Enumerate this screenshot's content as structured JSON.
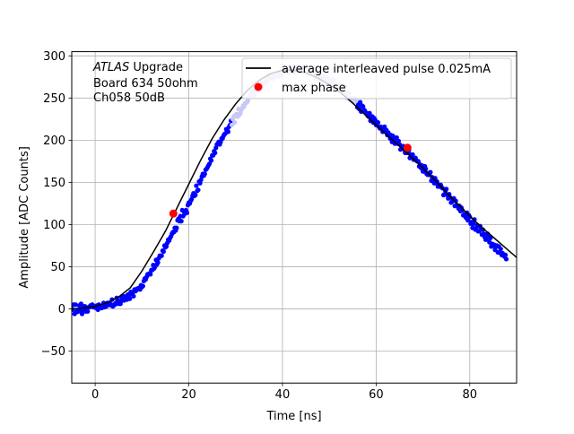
{
  "chart_data": {
    "type": "scatter",
    "xlabel": "Time [ns]",
    "ylabel": "Amplitude [ADC Counts]",
    "xlim": [
      -5,
      90
    ],
    "ylim": [
      -88,
      305
    ],
    "x_ticks": [
      "0",
      "20",
      "40",
      "60",
      "80"
    ],
    "x_tick_values": [
      0,
      20,
      40,
      60,
      80
    ],
    "y_ticks": [
      "−50",
      "0",
      "50",
      "100",
      "150",
      "200",
      "250",
      "300"
    ],
    "y_tick_values": [
      -50,
      0,
      50,
      100,
      150,
      200,
      250,
      300
    ],
    "grid": true,
    "legend_position": "top-right",
    "annotation": {
      "lines": [
        {
          "italic": "ATLAS",
          "normal": " Upgrade"
        },
        {
          "italic": "",
          "normal": " Board 634 50ohm"
        },
        {
          "italic": "",
          "normal": " Ch058 50dB"
        }
      ]
    },
    "series": [
      {
        "name": "average interleaved pulse 0.025mA",
        "kind": "line",
        "color": "#000000",
        "x": [
          -5,
          -2.5,
          0,
          2.5,
          5,
          7.5,
          10,
          12.5,
          15,
          17.5,
          20,
          22.5,
          25,
          27.5,
          30,
          32.5,
          35,
          37.5,
          40,
          42.5,
          45,
          47.5,
          50,
          52.5,
          55,
          57.5,
          60,
          62.5,
          65,
          67.5,
          70,
          72.5,
          75,
          77.5,
          80,
          82.5,
          85,
          87.5,
          90
        ],
        "y": [
          0,
          1,
          3,
          7,
          14,
          25,
          45,
          68,
          92,
          120,
          148,
          176,
          202,
          224,
          243,
          259,
          271,
          279,
          283,
          283,
          280,
          274,
          266,
          256,
          244,
          231,
          218,
          205,
          193,
          180,
          167,
          153,
          138,
          124,
          110,
          97,
          85,
          73,
          61
        ]
      },
      {
        "name": "",
        "kind": "scatter",
        "color": "#0000ff",
        "faded_color": "#c8c8f5",
        "x_start": -5,
        "x_step": 0.2,
        "y": [
          0,
          -1,
          5,
          -6,
          5,
          -4,
          -2,
          -3,
          4,
          -2,
          6,
          -6,
          3,
          -2,
          3,
          -3,
          1,
          -3,
          2,
          2,
          4,
          3,
          5,
          2,
          2,
          3,
          1,
          4,
          -1,
          5,
          2,
          2,
          1,
          3,
          7,
          2,
          5,
          3,
          7,
          5,
          7,
          6,
          4,
          11,
          3,
          5,
          5,
          7,
          13,
          10,
          6,
          9,
          6,
          14,
          10,
          15,
          10,
          14,
          15,
          11,
          17,
          16,
          12,
          20,
          18,
          19,
          15,
          23,
          21,
          22,
          24,
          24,
          25,
          23,
          28,
          26,
          27,
          33,
          36,
          35,
          38,
          41,
          41,
          42,
          41,
          46,
          46,
          52,
          48,
          50,
          58,
          53,
          55,
          60,
          63,
          63,
          63,
          69,
          68,
          75,
          73,
          74,
          78,
          82,
          81,
          84,
          86,
          89,
          91,
          91,
          96,
          93,
          96,
          105,
          107,
          104,
          110,
          104,
          117,
          110,
          115,
          113,
          117,
          114,
          123,
          126,
          125,
          128,
          130,
          134,
          137,
          134,
          135,
          146,
          140,
          141,
          151,
          149,
          153,
          157,
          160,
          158,
          160,
          165,
          166,
          168,
          170,
          172,
          178,
          176,
          182,
          182,
          187,
          185,
          191,
          195,
          196,
          198,
          195,
          198,
          202,
          202,
          205,
          207,
          208,
          213,
          213,
          210,
          216,
          218,
          223,
          218,
          225,
          228,
          221,
          230,
          231,
          228,
          237,
          230,
          232,
          236,
          238,
          241,
          240,
          244,
          244,
          245,
          247,
          251,
          251,
          254,
          256,
          257,
          253,
          253,
          258,
          262,
          263,
          259,
          264,
          265,
          269,
          265,
          264,
          268,
          268,
          269,
          272,
          270,
          277,
          273,
          274,
          277,
          275,
          273,
          276,
          275,
          277,
          279,
          276,
          276,
          281,
          277,
          280,
          285,
          284,
          280,
          282,
          284,
          284,
          285,
          280,
          282,
          283,
          283,
          288,
          285,
          280,
          284,
          286,
          284,
          287,
          285,
          282,
          281,
          281,
          285,
          288,
          281,
          287,
          283,
          282,
          280,
          278,
          278,
          286,
          280,
          283,
          280,
          276,
          273,
          282,
          280,
          276,
          274,
          276,
          271,
          276,
          274,
          273,
          275,
          267,
          274,
          270,
          270,
          269,
          267,
          272,
          268,
          271,
          264,
          262,
          266,
          261,
          262,
          265,
          259,
          265,
          263,
          258,
          258,
          264,
          255,
          250,
          251,
          256,
          249,
          249,
          250,
          246,
          247,
          250,
          246,
          246,
          239,
          242,
          237,
          245,
          234,
          241,
          240,
          236,
          235,
          232,
          232,
          229,
          228,
          232,
          223,
          227,
          228,
          221,
          226,
          224,
          218,
          221,
          221,
          216,
          214,
          216,
          214,
          210,
          213,
          216,
          211,
          212,
          206,
          209,
          206,
          202,
          206,
          198,
          205,
          202,
          196,
          198,
          203,
          196,
          199,
          195,
          189,
          193,
          191,
          193,
          189,
          185,
          192,
          185,
          187,
          188,
          179,
          183,
          180,
          183,
          177,
          178,
          179,
          176,
          175,
          175,
          169,
          171,
          167,
          170,
          163,
          163,
          169,
          166,
          160,
          159,
          161,
          159,
          162,
          152,
          156,
          153,
          149,
          155,
          149,
          151,
          145,
          147,
          145,
          147,
          144,
          143,
          135,
          136,
          140,
          142,
          135,
          131,
          136,
          132,
          126,
          127,
          130,
          131,
          122,
          128,
          123,
          122,
          119,
          122,
          116,
          120,
          117,
          111,
          112,
          110,
          108,
          114,
          105,
          111,
          109,
          101,
          103,
          96,
          101,
          106,
          94,
          96,
          99,
          92,
          92,
          98,
          94,
          88,
          94,
          89,
          85,
          82,
          83,
          89,
          85,
          79,
          84,
          74,
          77,
          75,
          76,
          70,
          74,
          75,
          67,
          74,
          67,
          71,
          64,
          66,
          64,
          62,
          64,
          59
        ]
      },
      {
        "name": "max phase",
        "kind": "points",
        "color": "#ff0000",
        "x": [
          16.7,
          66.7
        ],
        "y": [
          113,
          191
        ]
      }
    ]
  }
}
